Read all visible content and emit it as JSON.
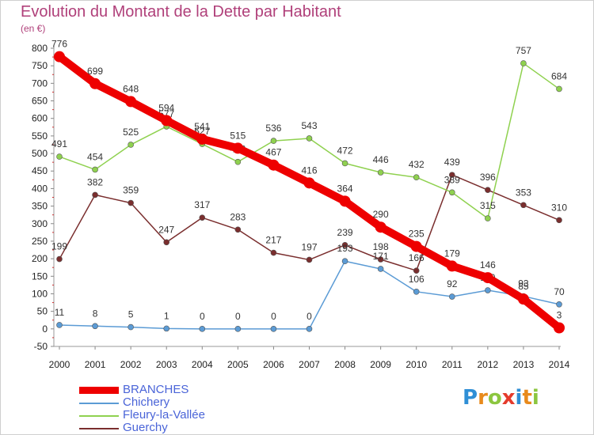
{
  "header": {
    "title": "Evolution du Montant de la Dette par Habitant",
    "unit": "(en €)"
  },
  "logo": {
    "letters": [
      "P",
      "r",
      "o",
      "x",
      "i",
      "t",
      "i"
    ],
    "colors": [
      "#2f8fd6",
      "#e88a1c",
      "#8cc63f",
      "#e53b2c",
      "#2f8fd6",
      "#e88a1c",
      "#8cc63f"
    ]
  },
  "chart_data": {
    "type": "line",
    "title": "Evolution du Montant de la Dette par Habitant",
    "ylabel": "(en €)",
    "xlabel": "",
    "x": [
      "2000",
      "2001",
      "2002",
      "2003",
      "2004",
      "2005",
      "2006",
      "2007",
      "2008",
      "2009",
      "2010",
      "2011",
      "2012",
      "2013",
      "2014"
    ],
    "ylim": [
      -50,
      800
    ],
    "yticks": [
      -50,
      0,
      50,
      100,
      150,
      200,
      250,
      300,
      350,
      400,
      450,
      500,
      550,
      600,
      650,
      700,
      750,
      800
    ],
    "grid": false,
    "legend_position": "bottom-left",
    "series": [
      {
        "name": "BRANCHES",
        "color": "#ee0000",
        "values": [
          776,
          699,
          648,
          594,
          541,
          515,
          467,
          416,
          364,
          290,
          235,
          179,
          146,
          85,
          3
        ]
      },
      {
        "name": "Chichery",
        "color": "#5b9bd5",
        "values": [
          11,
          8,
          5,
          1,
          0,
          0,
          0,
          0,
          193,
          171,
          106,
          92,
          110,
          93,
          70
        ]
      },
      {
        "name": "Fleury-la-Vallée",
        "color": "#8fd14f",
        "values": [
          491,
          454,
          525,
          577,
          527,
          476,
          536,
          543,
          472,
          446,
          432,
          389,
          315,
          757,
          684
        ]
      },
      {
        "name": "Guerchy",
        "color": "#7a2e2e",
        "values": [
          199,
          382,
          359,
          247,
          317,
          283,
          217,
          197,
          239,
          198,
          166,
          439,
          396,
          353,
          310
        ]
      }
    ]
  }
}
